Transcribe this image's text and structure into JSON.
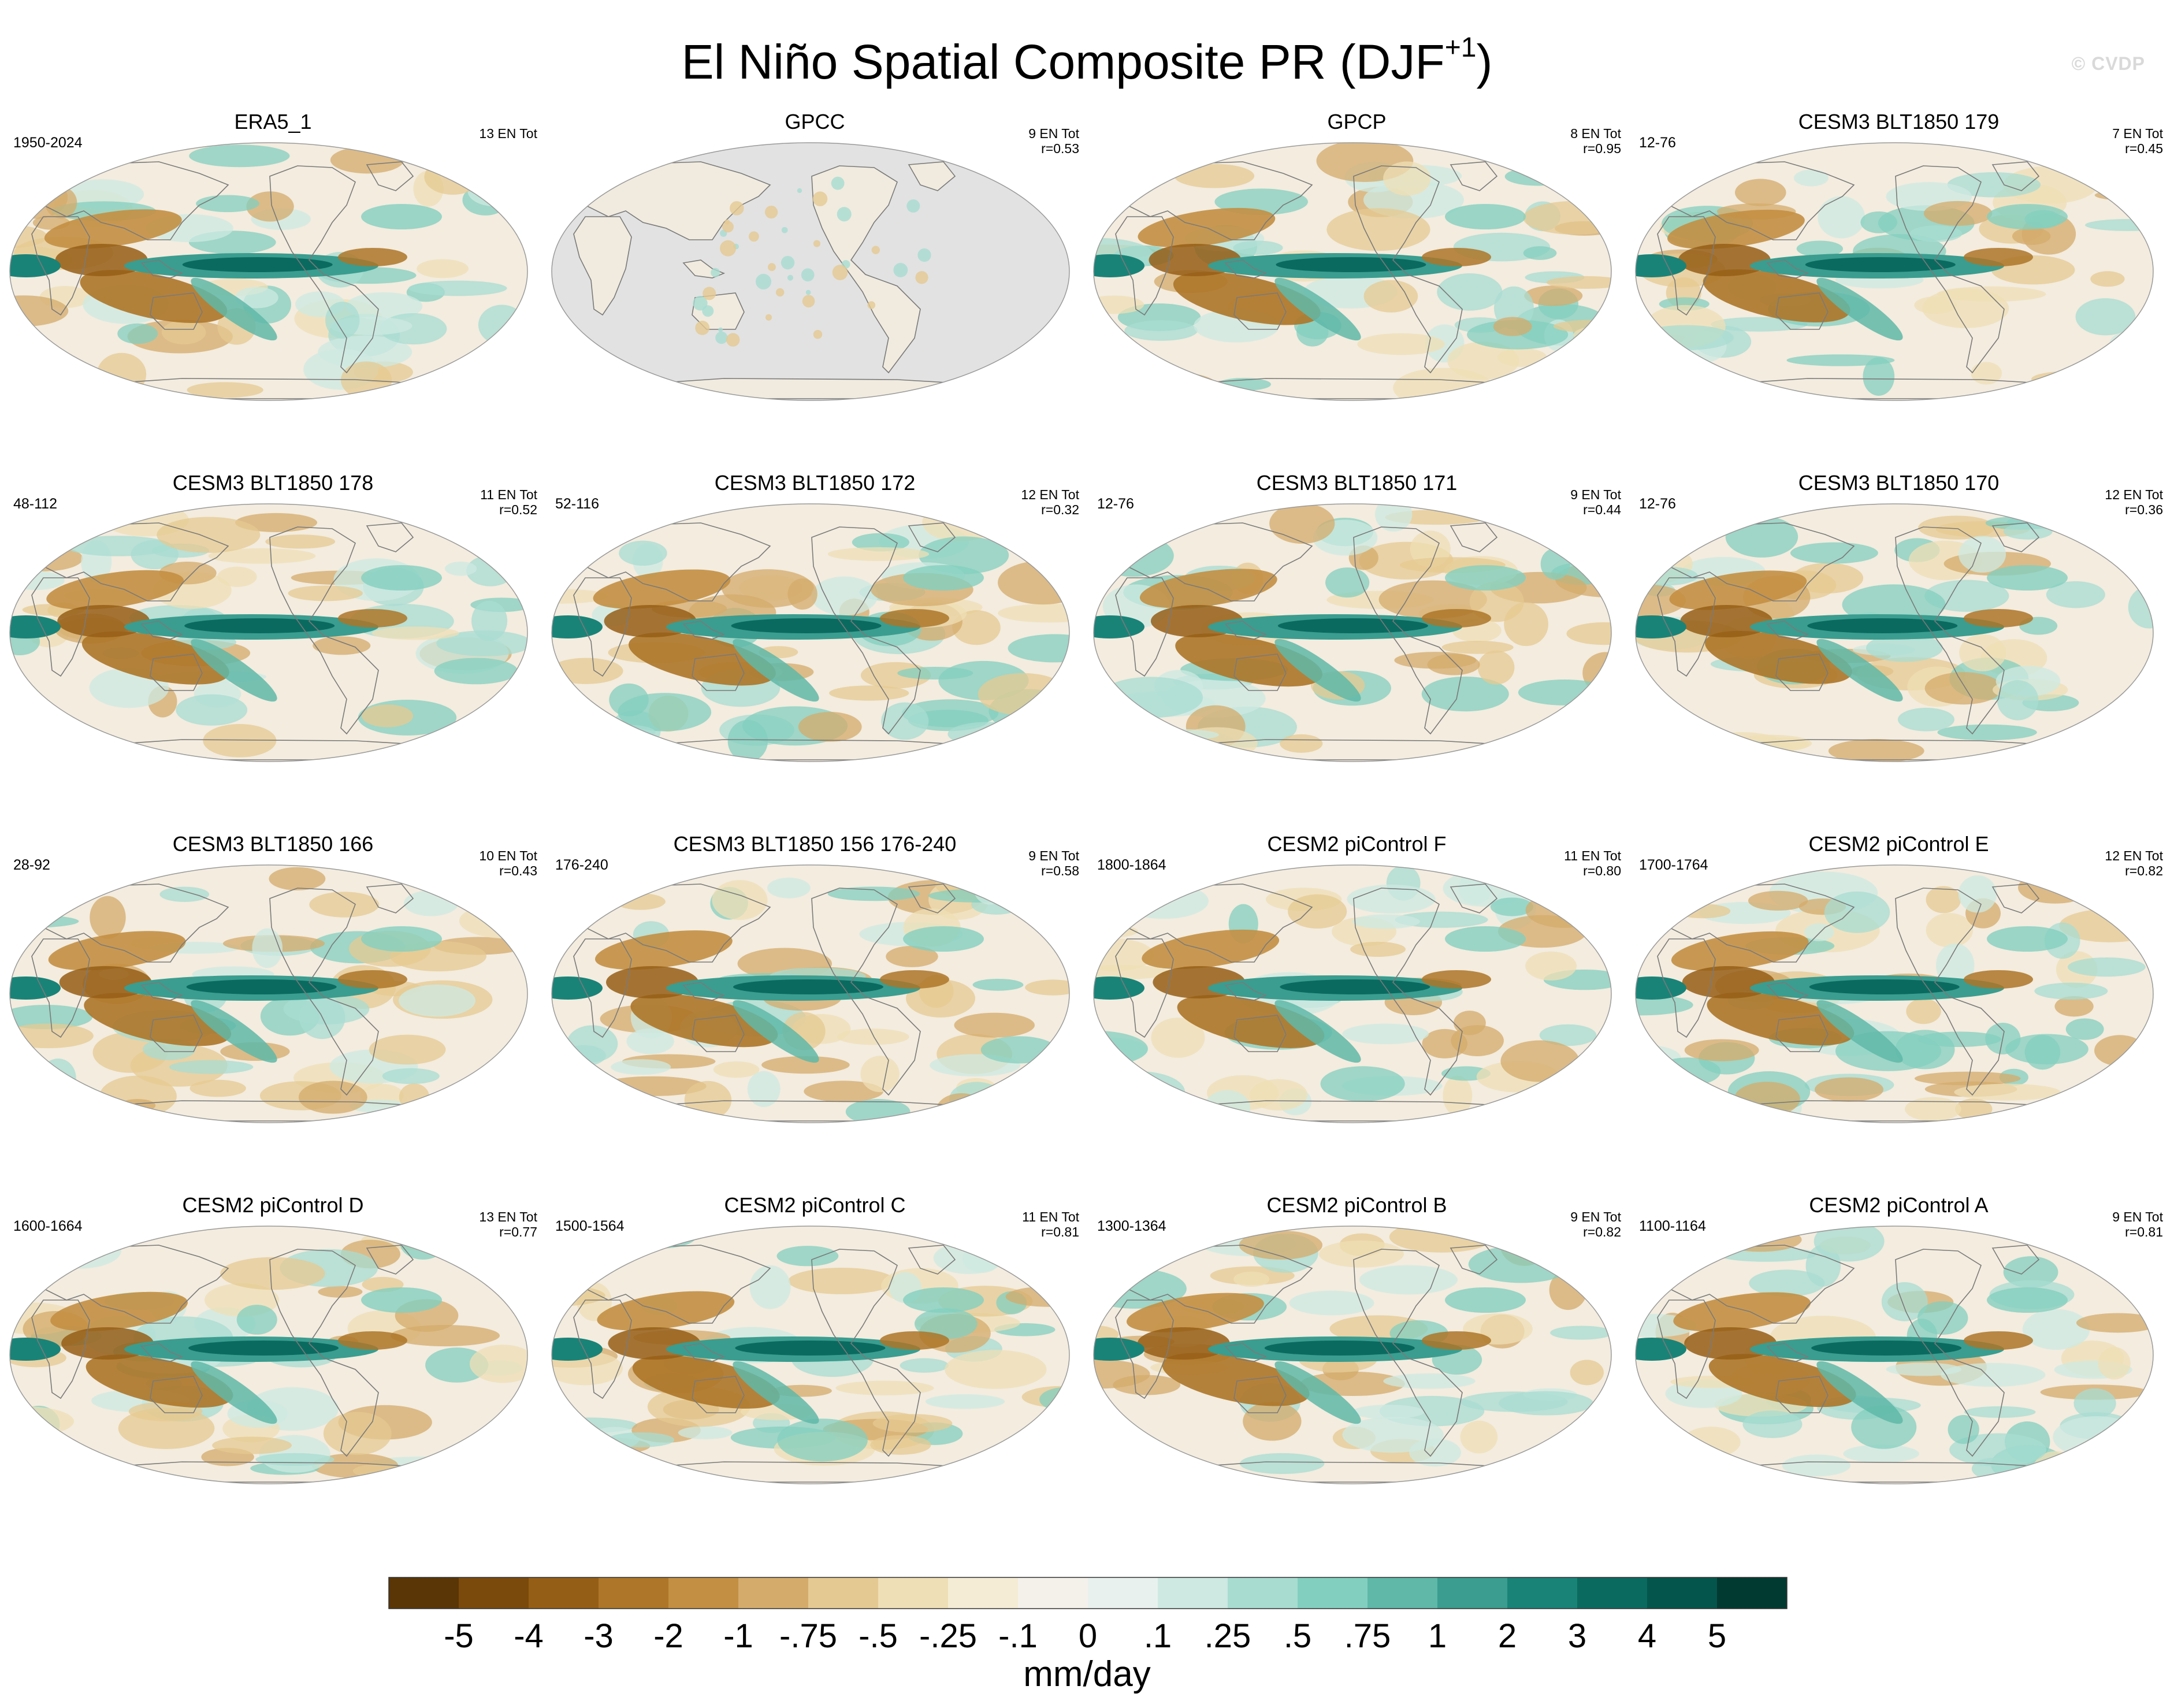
{
  "figure": {
    "title_main": "El Niño Spatial Composite PR (DJF",
    "title_superscript": "+1",
    "title_close": ")",
    "watermark": "© CVDP"
  },
  "colors": {
    "ocean_background": "#f3ecdf",
    "missing_land": "#e2e2e2",
    "coastline": "#7a7a7a",
    "frame": "#9a9a9a",
    "palette": [
      "#5a3506",
      "#7a4a0c",
      "#955e16",
      "#ad7628",
      "#c38f43",
      "#d4ab6b",
      "#e5c992",
      "#efdfb6",
      "#f5ecd6",
      "#f4f1ea",
      "#e9f1ef",
      "#cde9e2",
      "#a8dcd1",
      "#83cfbf",
      "#5fb8a8",
      "#3a9d8f",
      "#1a8378",
      "#0b6a60",
      "#04554b",
      "#003a31"
    ]
  },
  "colorbar": {
    "ticks": [
      "-5",
      "-4",
      "-3",
      "-2",
      "-1",
      "-.75",
      "-.5",
      "-.25",
      "-.1",
      "0",
      ".1",
      ".25",
      ".5",
      ".75",
      "1",
      "2",
      "3",
      "4",
      "5"
    ],
    "units": "mm/day"
  },
  "panels": [
    {
      "title": "ERA5_1",
      "years": "1950-2024",
      "stats_line1": "13 EN Tot",
      "stats_line2": "",
      "gpcc": false
    },
    {
      "title": "GPCC",
      "years": "",
      "stats_line1": "9 EN Tot",
      "stats_line2": "r=0.53",
      "gpcc": true
    },
    {
      "title": "GPCP",
      "years": "",
      "stats_line1": "8 EN Tot",
      "stats_line2": "r=0.95",
      "gpcc": false
    },
    {
      "title": "CESM3 BLT1850 179",
      "years": "12-76",
      "stats_line1": "7 EN Tot",
      "stats_line2": "r=0.45",
      "gpcc": false
    },
    {
      "title": "CESM3 BLT1850 178",
      "years": "48-112",
      "stats_line1": "11 EN Tot",
      "stats_line2": "r=0.52",
      "gpcc": false
    },
    {
      "title": "CESM3 BLT1850 172",
      "years": "52-116",
      "stats_line1": "12 EN Tot",
      "stats_line2": "r=0.32",
      "gpcc": false
    },
    {
      "title": "CESM3 BLT1850 171",
      "years": "12-76",
      "stats_line1": "9 EN Tot",
      "stats_line2": "r=0.44",
      "gpcc": false
    },
    {
      "title": "CESM3 BLT1850 170",
      "years": "12-76",
      "stats_line1": "12 EN Tot",
      "stats_line2": "r=0.36",
      "gpcc": false
    },
    {
      "title": "CESM3 BLT1850 166",
      "years": "28-92",
      "stats_line1": "10 EN Tot",
      "stats_line2": "r=0.43",
      "gpcc": false
    },
    {
      "title": "CESM3 BLT1850 156 176-240",
      "years": "176-240",
      "stats_line1": "9 EN Tot",
      "stats_line2": "r=0.58",
      "gpcc": false
    },
    {
      "title": "CESM2 piControl F",
      "years": "1800-1864",
      "stats_line1": "11 EN Tot",
      "stats_line2": "r=0.80",
      "gpcc": false
    },
    {
      "title": "CESM2 piControl E",
      "years": "1700-1764",
      "stats_line1": "12 EN Tot",
      "stats_line2": "r=0.82",
      "gpcc": false
    },
    {
      "title": "CESM2 piControl D",
      "years": "1600-1664",
      "stats_line1": "13 EN Tot",
      "stats_line2": "r=0.77",
      "gpcc": false
    },
    {
      "title": "CESM2 piControl C",
      "years": "1500-1564",
      "stats_line1": "11 EN Tot",
      "stats_line2": "r=0.81",
      "gpcc": false
    },
    {
      "title": "CESM2 piControl B",
      "years": "1300-1364",
      "stats_line1": "9 EN Tot",
      "stats_line2": "r=0.82",
      "gpcc": false
    },
    {
      "title": "CESM2 piControl A",
      "years": "1100-1164",
      "stats_line1": "9 EN Tot",
      "stats_line2": "r=0.81",
      "gpcc": false
    }
  ]
}
